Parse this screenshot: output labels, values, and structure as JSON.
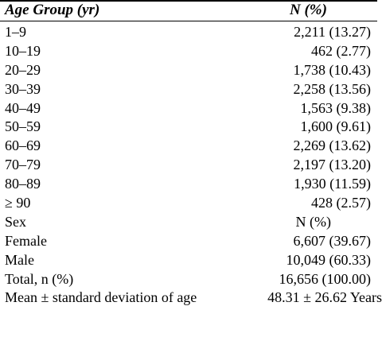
{
  "header": {
    "col1": "Age Group (yr)",
    "col2": "N (%)"
  },
  "rows": [
    {
      "label": "1–9",
      "value": "2,211 (13.27)"
    },
    {
      "label": "10–19",
      "value": "462 (2.77)"
    },
    {
      "label": "20–29",
      "value": "1,738 (10.43)"
    },
    {
      "label": "30–39",
      "value": "2,258 (13.56)"
    },
    {
      "label": "40–49",
      "value": "1,563 (9.38)"
    },
    {
      "label": "50–59",
      "value": "1,600 (9.61)"
    },
    {
      "label": "60–69",
      "value": "2,269 (13.62)"
    },
    {
      "label": "70–79",
      "value": "2,197 (13.20)"
    },
    {
      "label": "80–89",
      "value": "1,930 (11.59)"
    },
    {
      "label": "≥ 90",
      "value": "428 (2.57)"
    },
    {
      "label": "Sex",
      "value": "N (%)"
    },
    {
      "label": "Female",
      "value": "6,607 (39.67)"
    },
    {
      "label": "Male",
      "value": "10,049 (60.33)"
    },
    {
      "label": "Total, n (%)",
      "value": "16,656 (100.00)"
    },
    {
      "label": "Mean ± standard deviation of age",
      "value": "48.31 ± 26.62 Years"
    }
  ]
}
